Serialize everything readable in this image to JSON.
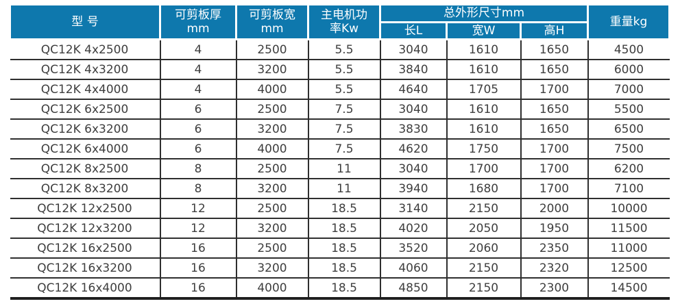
{
  "colors": {
    "header_bg": "#0e78ad",
    "header_text": "#ffffff",
    "body_text": "#3e3e3e",
    "grid_line": "#2e2e2e"
  },
  "header": {
    "model": "型 号",
    "thickness": "可剪板厚\nmm",
    "plate_width": "可剪板宽\nmm",
    "motor_power": "主电机功\n率Kw",
    "dimensions_group": "总外形尺寸mm",
    "dim_length": "长L",
    "dim_width": "宽W",
    "dim_height": "高H",
    "weight": "重量kg"
  },
  "chart_data": {
    "type": "table",
    "columns": [
      "型 号",
      "可剪板厚 mm",
      "可剪板宽 mm",
      "主电机功率Kw",
      "总外形尺寸mm 长L",
      "总外形尺寸mm 宽W",
      "总外形尺寸mm 高H",
      "重量kg"
    ],
    "rows": [
      [
        "QC12K 4x2500",
        "4",
        "2500",
        "5.5",
        "3040",
        "1610",
        "1650",
        "4500"
      ],
      [
        "QC12K 4x3200",
        "4",
        "3200",
        "5.5",
        "3840",
        "1610",
        "1650",
        "6000"
      ],
      [
        "QC12K 4x4000",
        "4",
        "4000",
        "5.5",
        "4640",
        "1705",
        "1700",
        "7000"
      ],
      [
        "QC12K 6x2500",
        "6",
        "2500",
        "7.5",
        "3040",
        "1610",
        "1650",
        "5500"
      ],
      [
        "QC12K 6x3200",
        "6",
        "3200",
        "7.5",
        "3830",
        "1610",
        "1650",
        "6500"
      ],
      [
        "QC12K 6x4000",
        "6",
        "4000",
        "7.5",
        "4620",
        "1750",
        "1700",
        "7500"
      ],
      [
        "QC12K 8x2500",
        "8",
        "2500",
        "11",
        "3040",
        "1700",
        "1700",
        "6200"
      ],
      [
        "QC12K 8x3200",
        "8",
        "3200",
        "11",
        "3940",
        "1680",
        "1700",
        "7100"
      ],
      [
        "QC12K 12x2500",
        "12",
        "2500",
        "18.5",
        "3140",
        "2150",
        "2000",
        "10000"
      ],
      [
        "QC12K 12x3200",
        "12",
        "3200",
        "18.5",
        "4020",
        "2050",
        "1950",
        "11500"
      ],
      [
        "QC12K 16x2500",
        "16",
        "2500",
        "18.5",
        "3520",
        "2060",
        "2350",
        "11000"
      ],
      [
        "QC12K 16x3200",
        "16",
        "3200",
        "18.5",
        "4060",
        "2150",
        "2320",
        "12500"
      ],
      [
        "QC12K 16x4000",
        "16",
        "4000",
        "18.5",
        "4850",
        "2150",
        "2300",
        "14500"
      ]
    ]
  }
}
